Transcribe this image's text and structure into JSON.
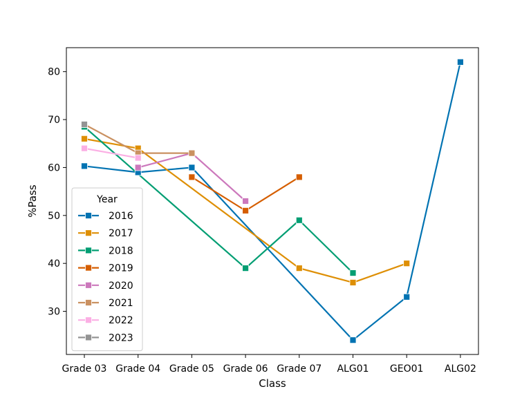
{
  "chart_data": {
    "type": "line",
    "xlabel": "Class",
    "ylabel": "%Pass",
    "categories": [
      "Grade 03",
      "Grade 04",
      "Grade 05",
      "Grade 06",
      "Grade 07",
      "ALG01",
      "GEO01",
      "ALG02"
    ],
    "ylim": [
      21,
      85
    ],
    "yticks": [
      30,
      40,
      50,
      60,
      70,
      80
    ],
    "grid": false,
    "legend": {
      "title": "Year",
      "position": "lower-left"
    },
    "series": [
      {
        "name": "2016",
        "color": "#0173b2",
        "values": [
          60.3,
          59,
          60,
          null,
          null,
          24,
          33,
          82
        ]
      },
      {
        "name": "2017",
        "color": "#de8f05",
        "values": [
          66,
          64,
          null,
          null,
          39,
          36,
          40,
          null
        ]
      },
      {
        "name": "2018",
        "color": "#029e73",
        "values": [
          68.5,
          null,
          null,
          39,
          49,
          38,
          null,
          null
        ]
      },
      {
        "name": "2019",
        "color": "#d55e00",
        "values": [
          null,
          null,
          58,
          51,
          58,
          null,
          null,
          null
        ]
      },
      {
        "name": "2020",
        "color": "#cc78bc",
        "values": [
          null,
          60,
          63,
          53,
          null,
          null,
          null,
          null
        ]
      },
      {
        "name": "2021",
        "color": "#ca9161",
        "values": [
          69,
          63,
          63,
          null,
          null,
          null,
          null,
          null
        ]
      },
      {
        "name": "2022",
        "color": "#fbafe4",
        "values": [
          64,
          62,
          null,
          null,
          null,
          null,
          null,
          null
        ]
      },
      {
        "name": "2023",
        "color": "#949494",
        "values": [
          69,
          null,
          null,
          null,
          null,
          null,
          null,
          null
        ]
      }
    ]
  }
}
